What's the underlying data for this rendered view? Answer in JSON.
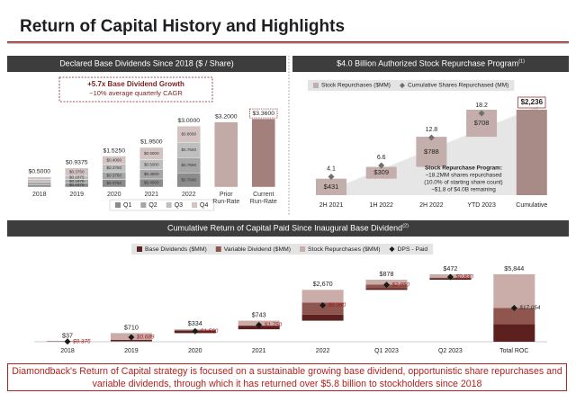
{
  "title": "Return of Capital History and Highlights",
  "chart_data": [
    {
      "type": "stacked-bar",
      "title": "Declared Base Dividends Since 2018 ($ / Share)",
      "annotation": [
        "+5.7x Base Dividend Growth",
        "~10% average quarterly CAGR"
      ],
      "categories": [
        "2018",
        "2019",
        "2020",
        "2021",
        "2022",
        "Prior\nRun-Rate",
        "Current\nRun-Rate"
      ],
      "series": [
        {
          "name": "Q1",
          "color": "#8c8c8c",
          "values": [
            0.125,
            0.1875,
            0.375,
            0.4,
            0.7,
            null,
            null
          ],
          "value_labels": [
            null,
            "$0.1875",
            "$0.3750",
            "$0.4000",
            "$0.7000",
            null,
            null
          ]
        },
        {
          "name": "Q2",
          "color": "#a6a6a6",
          "values": [
            0.125,
            0.1875,
            0.375,
            0.45,
            0.75,
            null,
            null
          ],
          "value_labels": [
            null,
            "$0.1875",
            "$0.3750",
            "$0.4500",
            "$0.7500",
            null,
            null
          ]
        },
        {
          "name": "Q3",
          "color": "#bfbfbf",
          "values": [
            0.125,
            0.1875,
            0.375,
            0.5,
            0.75,
            null,
            null
          ],
          "value_labels": [
            null,
            "$0.1875",
            "$0.3750",
            "$0.5000",
            "$0.7500",
            null,
            null
          ]
        },
        {
          "name": "Q4",
          "color": "#d3c4c2",
          "values": [
            0.125,
            0.375,
            0.4,
            0.6,
            0.8,
            null,
            null
          ],
          "value_labels": [
            null,
            "$0.3750",
            "$0.4000",
            "$0.6000",
            "$0.8000",
            null,
            null
          ]
        },
        {
          "color": "#c2aaa7",
          "values": [
            null,
            null,
            null,
            null,
            null,
            3.2,
            null
          ]
        },
        {
          "color": "#a4807c",
          "values": [
            null,
            null,
            null,
            null,
            null,
            null,
            3.36
          ]
        }
      ],
      "totals": [
        0.5,
        0.9375,
        1.525,
        1.95,
        3.0,
        3.2,
        3.36
      ],
      "total_labels": [
        "$0.5000",
        "$0.9375",
        "$1.5250",
        "$1.9500",
        "$3.0000",
        "$3.2000",
        "$3.3600"
      ]
    },
    {
      "type": "waterfall",
      "title": "$4.0 Billion Authorized Stock Repurchase Program",
      "title_note": "(1)",
      "categories": [
        "2H 2021",
        "1H 2022",
        "2H 2022",
        "YTD 2023",
        "Cumulative"
      ],
      "series": [
        {
          "name": "Stock Repurchases ($MM)",
          "color": "#c4aeab",
          "values": [
            431,
            309,
            788,
            708,
            2236
          ],
          "value_labels": [
            "$431",
            "$309",
            "$788",
            "$708",
            "$2,236"
          ]
        },
        {
          "name": "Cumulative Shares Repurchased (MM)",
          "type": "marker",
          "axis": "y2",
          "color": "#707070",
          "values": [
            4.1,
            6.6,
            12.8,
            18.2,
            null
          ]
        }
      ],
      "annotation": [
        "Stock Repurchase Program:",
        "~18.2MM shares repurchased",
        "(10.0% of starting share count)",
        "~$1.8 of $4.0B remaining"
      ]
    },
    {
      "type": "waterfall",
      "title": "Cumulative Return of Capital Paid Since Inaugural Base Dividend",
      "title_note": "(2)",
      "categories": [
        "2018",
        "2019",
        "2020",
        "2021",
        "2022",
        "Q1 2023",
        "Q2 2023",
        "Total ROC"
      ],
      "series": [
        {
          "name": "Base Dividends ($MM)",
          "color": "#5c211e",
          "values": [
            37,
            120,
            236,
            312,
            530,
            150,
            145,
            1530
          ]
        },
        {
          "name": "Variable Dividend ($MM)",
          "color": "#8f5650",
          "values": [
            0,
            0,
            0,
            0,
            1043,
            307,
            40,
            1390
          ]
        },
        {
          "name": "Stock Repurchases ($MM)",
          "color": "#caaca8",
          "values": [
            0,
            590,
            98,
            431,
            1097,
            421,
            287,
            2924
          ]
        },
        {
          "name": "DPS - Paid",
          "type": "marker",
          "color": "#1a1a1a",
          "values": [
            0.375,
            0.689,
            1.5,
            1.75,
            8.96,
            2.95,
            0.83,
            17.054
          ],
          "value_labels": [
            "$0.375",
            "$0.689",
            "$1.500",
            "$1.750",
            "$8.960",
            "$2.950",
            "$0.830",
            "$17.054"
          ]
        }
      ],
      "totals": [
        37,
        710,
        334,
        743,
        2670,
        878,
        472,
        5844
      ],
      "total_labels": [
        "$37",
        "$710",
        "$334",
        "$743",
        "$2,670",
        "$878",
        "$472",
        "$5,844"
      ]
    }
  ],
  "footer": "Diamondback's Return of Capital strategy is focused on a sustainable growing base dividend, opportunistic share repurchases and variable dividends, through which it has returned over $5.8 billion to stockholders since 2018"
}
